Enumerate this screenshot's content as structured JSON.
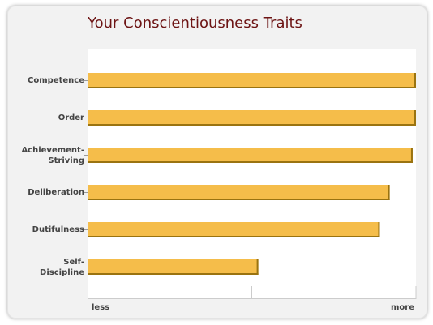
{
  "chart_data": {
    "type": "bar",
    "orientation": "horizontal",
    "title": "Your Conscientiousness Traits",
    "categories": [
      "Competence",
      "Order",
      "Achievement-\nStriving",
      "Deliberation",
      "Dutifulness",
      "Self-\nDiscipline"
    ],
    "values": [
      100,
      100,
      99,
      92,
      89,
      52
    ],
    "xlim": [
      0,
      100
    ],
    "x_min_label": "less",
    "x_max_label": "more",
    "grid": true,
    "bar_color": "#f5bd4a",
    "bar_edge_color": "#9a7310",
    "title_color": "#6d1414"
  }
}
